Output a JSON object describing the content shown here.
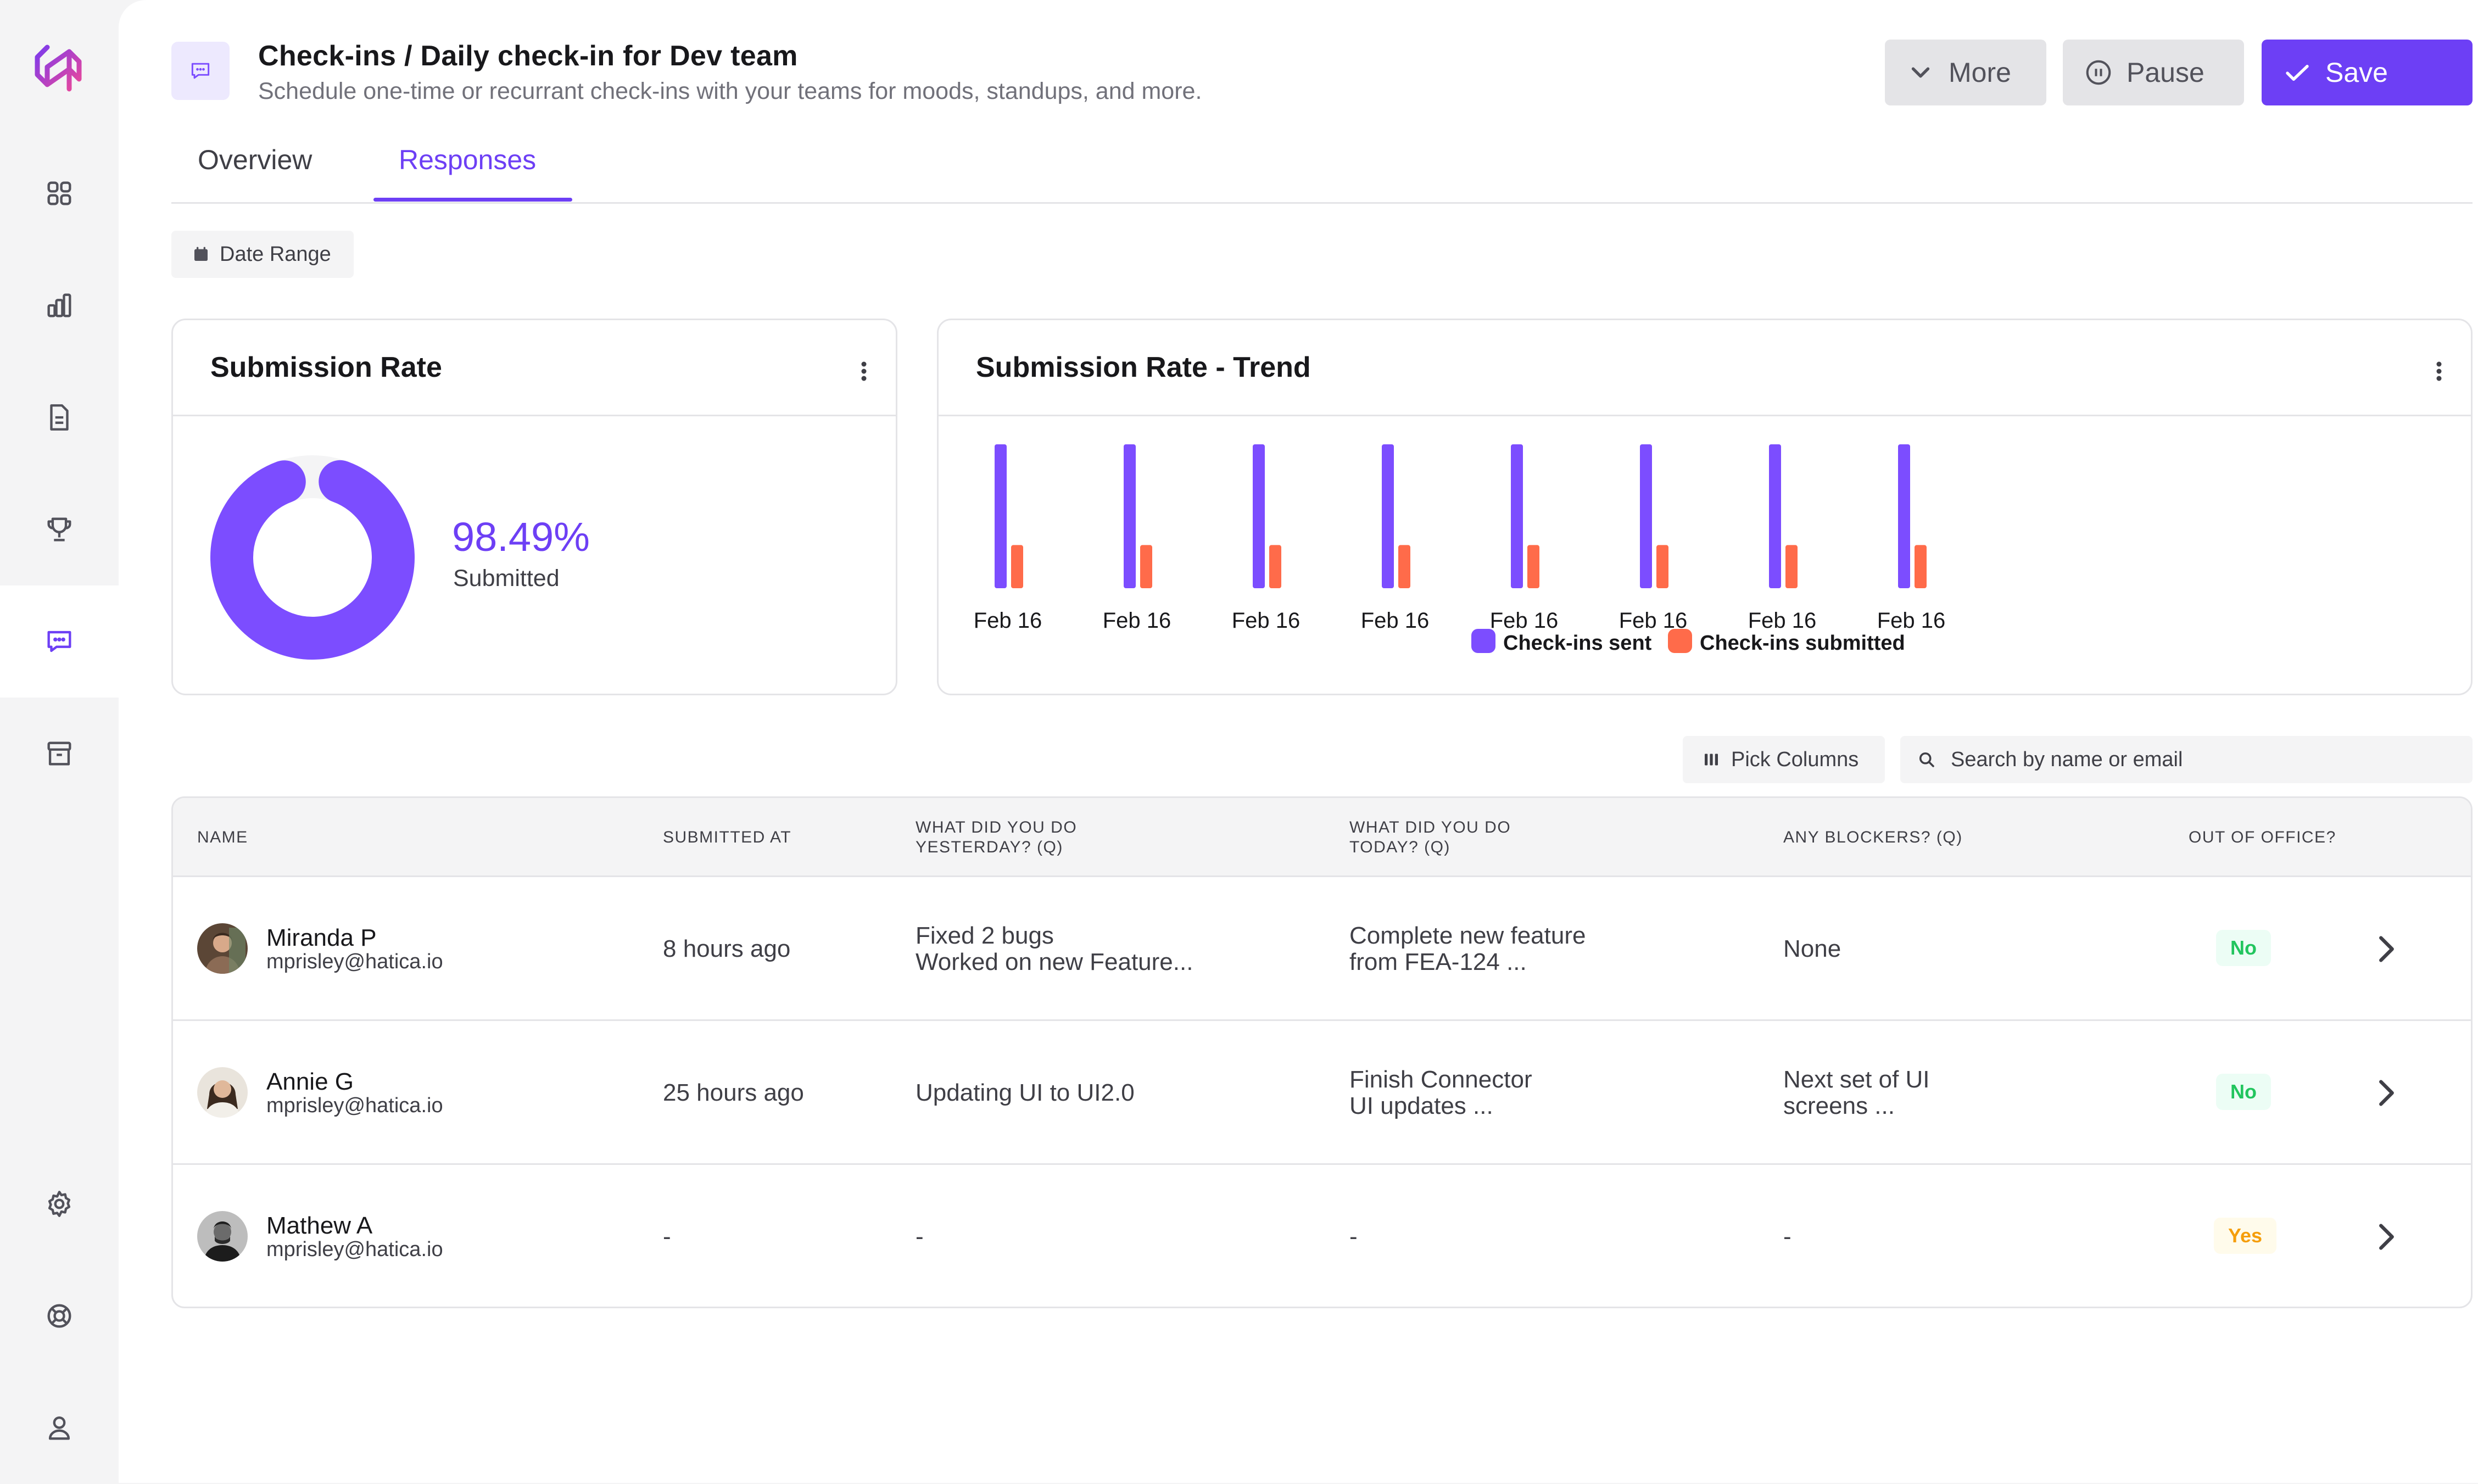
{
  "header": {
    "title": "Check-ins / Daily check-in for Dev team",
    "subtitle": "Schedule one-time or recurrant check-ins with your teams for moods, standups, and more.",
    "more_label": "More",
    "pause_label": "Pause",
    "save_label": "Save"
  },
  "tabs": [
    {
      "label": "Overview",
      "active": false
    },
    {
      "label": "Responses",
      "active": true
    }
  ],
  "filters": {
    "date_range_label": "Date Range"
  },
  "submission_rate": {
    "title": "Submission Rate",
    "percent_label": "98.49%",
    "percent_value": 98.49,
    "caption": "Submitted"
  },
  "trend": {
    "title": "Submission Rate - Trend"
  },
  "chart_data": {
    "type": "bar",
    "title": "Submission Rate - Trend",
    "categories": [
      "Feb 16",
      "Feb 16",
      "Feb 16",
      "Feb 16",
      "Feb 16",
      "Feb 16",
      "Feb 16",
      "Feb 16"
    ],
    "series": [
      {
        "name": "Check-ins sent",
        "color": "#7c4dff",
        "values": [
          100,
          100,
          100,
          100,
          100,
          100,
          100,
          100
        ]
      },
      {
        "name": "Check-ins submitted",
        "color": "#ff6b4a",
        "values": [
          30,
          30,
          30,
          30,
          30,
          30,
          30,
          30
        ]
      }
    ],
    "ylim": [
      0,
      100
    ],
    "grid": false,
    "legend": "bottom-center"
  },
  "table_tools": {
    "pick_columns_label": "Pick Columns",
    "search_placeholder": "Search by name or email"
  },
  "table": {
    "columns": [
      "NAME",
      "SUBMITTED AT",
      "WHAT DID YOU DO\nYESTERDAY? (Q)",
      "WHAT DID YOU DO\nTODAY? (Q)",
      "ANY BLOCKERS? (Q)",
      "OUT OF OFFICE?"
    ],
    "rows": [
      {
        "name": "Miranda P",
        "email": "mprisley@hatica.io",
        "submitted_at": "8 hours ago",
        "yesterday": "Fixed 2 bugs\nWorked on new Feature...",
        "today": "Complete new feature\nfrom FEA-124 ...",
        "blockers": "None",
        "ooo": "No"
      },
      {
        "name": "Annie G",
        "email": "mprisley@hatica.io",
        "submitted_at": "25 hours ago",
        "yesterday": "Updating UI to UI2.0",
        "today": "Finish Connector\nUI updates ...",
        "blockers": "Next set of UI\nscreens ...",
        "ooo": "No"
      },
      {
        "name": "Mathew A",
        "email": "mprisley@hatica.io",
        "submitted_at": "-",
        "yesterday": "-",
        "today": "-",
        "blockers": "-",
        "ooo": "Yes"
      }
    ]
  },
  "colors": {
    "accent": "#6d3ff5",
    "sent": "#7c4dff",
    "submitted": "#ff6b4a",
    "ooo_no": "#22c55e",
    "ooo_yes": "#f59e0b"
  },
  "icons": {
    "sidebar": [
      "dashboard-icon",
      "bar-chart-icon",
      "document-icon",
      "trophy-icon",
      "chat-icon",
      "archive-icon",
      "settings-icon",
      "lifebuoy-icon",
      "user-icon"
    ]
  }
}
